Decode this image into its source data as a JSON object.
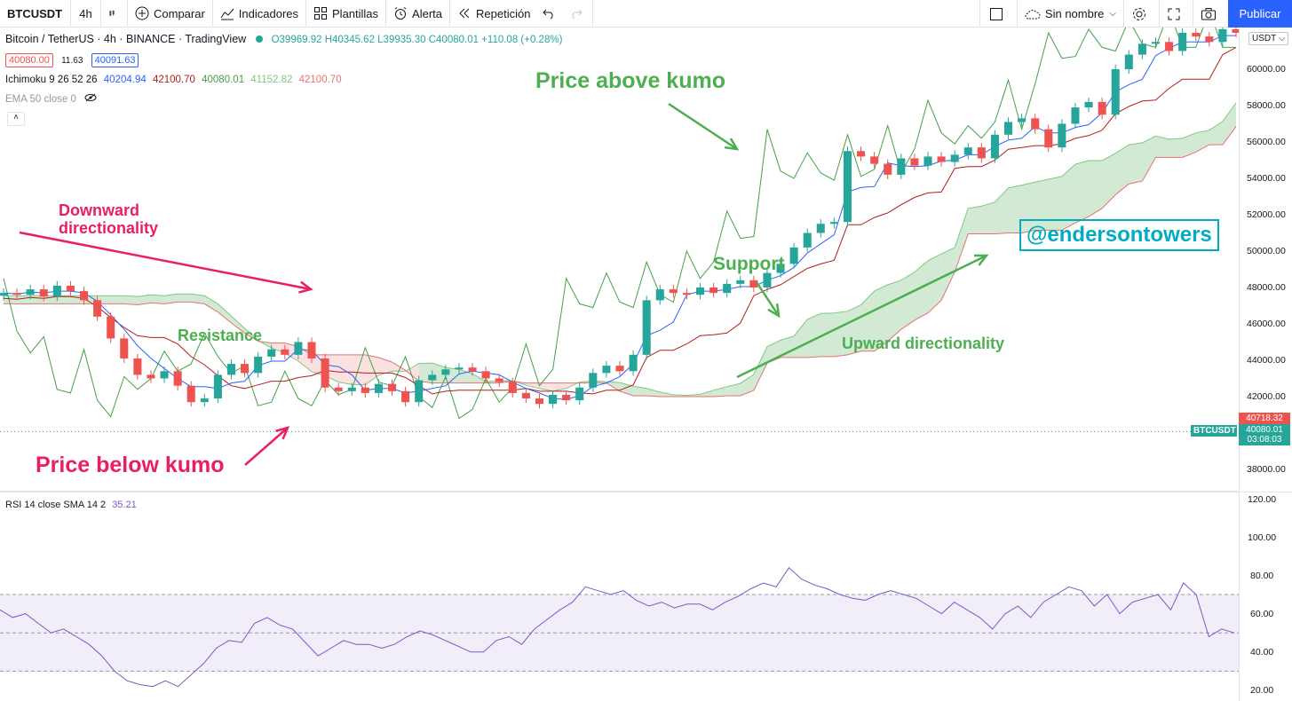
{
  "toolbar": {
    "symbol": "BTCUSDT",
    "interval": "4h",
    "compare": "Comparar",
    "indicators": "Indicadores",
    "templates": "Plantillas",
    "alert": "Alerta",
    "replay": "Repetición",
    "layout_name": "Sin nombre",
    "publish": "Publicar"
  },
  "legend": {
    "title": "Bitcoin / TetherUS · 4h · BINANCE · TradingView",
    "ohlc": "O39969.92 H40345.62 L39935.30 C40080.01 +110.08 (+0.28%)",
    "bid": "40080.00",
    "spread": "11.63",
    "ask": "40091.63",
    "ichimoku_name": "Ichimoku 9 26 52 26",
    "ichimoku_values": [
      "40204.94",
      "42100.70",
      "40080.01",
      "41152.82",
      "42100.70"
    ],
    "ema_label": "EMA 50 close 0"
  },
  "price_axis": {
    "currency": "USDT",
    "ticks": [
      "60000.00",
      "58000.00",
      "56000.00",
      "54000.00",
      "52000.00",
      "50000.00",
      "48000.00",
      "46000.00",
      "44000.00",
      "42000.00",
      "38000.00"
    ],
    "tag_high": "40718.32",
    "tag_last": "40080.01",
    "tag_timer": "03:08:03",
    "tag_symbol": "BTCUSDT"
  },
  "rsi": {
    "label": "RSI 14 close SMA 14 2",
    "value": "35.21",
    "ticks": [
      "120.00",
      "100.00",
      "80.00",
      "60.00",
      "40.00",
      "20.00"
    ]
  },
  "annotations": {
    "downward": "Downward\ndirectionality",
    "price_below": "Price below kumo",
    "resistance": "Resistance",
    "price_above": "Price above kumo",
    "support": "Support",
    "upward": "Upward directionality",
    "watermark": "@endersontowers"
  },
  "colors": {
    "up": "#26a69a",
    "down": "#ef5350",
    "tenkan": "#2962ff",
    "kijun": "#b71c1c",
    "chikou": "#43a047",
    "cloud_bull": "#a5d6a7",
    "cloud_bear": "#f7c4c4",
    "rsi_line": "#7e57c2",
    "annot_pink": "#e91e63",
    "annot_green": "#4caf50",
    "watermark": "#00acc1"
  },
  "chart_data": {
    "type": "candlestick",
    "symbol": "BTCUSDT",
    "interval": "4h",
    "ylim": [
      37500,
      62000
    ],
    "price_path": [
      47700,
      47600,
      47900,
      47500,
      48100,
      47800,
      47300,
      46400,
      45200,
      44100,
      43200,
      43000,
      43400,
      42600,
      41700,
      41900,
      43200,
      43800,
      43300,
      44200,
      44600,
      44300,
      45000,
      44100,
      42500,
      42300,
      42500,
      42200,
      42700,
      42300,
      41700,
      42900,
      43200,
      43500,
      43600,
      43400,
      43000,
      42800,
      42200,
      41900,
      41600,
      42100,
      41800,
      42500,
      43300,
      43700,
      43400,
      44300,
      47300,
      47900,
      47700,
      47600,
      48000,
      47700,
      48200,
      48400,
      48000,
      48800,
      49300,
      50200,
      51000,
      51500,
      51600,
      55500,
      55200,
      54800,
      54200,
      55100,
      54700,
      55200,
      54900,
      55300,
      55700,
      55100,
      56400,
      57100,
      57300,
      56700,
      55700,
      57000,
      57900,
      58200,
      57500,
      60000,
      60800,
      61400,
      61500,
      61000,
      62000,
      61800,
      61500,
      62200,
      62000
    ],
    "rsi_values": [
      62,
      58,
      60,
      55,
      50,
      52,
      48,
      44,
      38,
      30,
      25,
      23,
      22,
      25,
      22,
      28,
      34,
      42,
      46,
      45,
      55,
      58,
      54,
      52,
      45,
      38,
      42,
      46,
      44,
      44,
      42,
      44,
      48,
      51,
      49,
      46,
      43,
      40,
      40,
      46,
      48,
      44,
      52,
      57,
      62,
      66,
      74,
      72,
      70,
      72,
      67,
      64,
      66,
      63,
      65,
      65,
      62,
      66,
      69,
      73,
      76,
      74,
      84,
      78,
      75,
      73,
      70,
      68,
      67,
      70,
      72,
      70,
      68,
      64,
      60,
      66,
      62,
      58,
      52,
      60,
      64,
      58,
      66,
      70,
      74,
      72,
      64,
      70,
      60,
      66,
      68,
      70,
      62,
      76,
      70,
      48,
      52,
      50
    ],
    "rsi_ylim": [
      20,
      120
    ],
    "rsi_bands": [
      30,
      50,
      70
    ]
  }
}
